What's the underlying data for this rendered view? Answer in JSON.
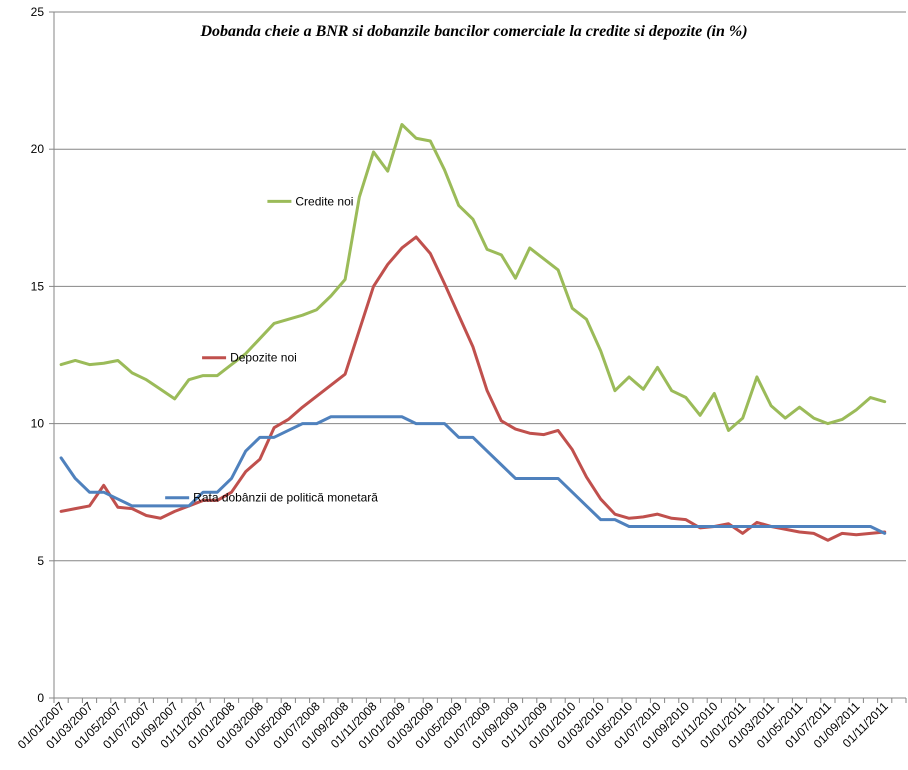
{
  "chart_data": {
    "type": "line",
    "title": "Dobanda cheie a BNR si dobanzile bancilor comerciale la credite si depozite (in %)",
    "xlabel": "",
    "ylabel": "",
    "ylim": [
      0,
      25
    ],
    "yticks": [
      0,
      5,
      10,
      15,
      20,
      25
    ],
    "grid": true,
    "x": [
      "01/01/2007",
      "01/02/2007",
      "01/03/2007",
      "01/04/2007",
      "01/05/2007",
      "01/06/2007",
      "01/07/2007",
      "01/08/2007",
      "01/09/2007",
      "01/10/2007",
      "01/11/2007",
      "01/12/2007",
      "01/01/2008",
      "01/02/2008",
      "01/03/2008",
      "01/04/2008",
      "01/05/2008",
      "01/06/2008",
      "01/07/2008",
      "01/08/2008",
      "01/09/2008",
      "01/10/2008",
      "01/11/2008",
      "01/12/2008",
      "01/01/2009",
      "01/02/2009",
      "01/03/2009",
      "01/04/2009",
      "01/05/2009",
      "01/06/2009",
      "01/07/2009",
      "01/08/2009",
      "01/09/2009",
      "01/10/2009",
      "01/11/2009",
      "01/12/2009",
      "01/01/2010",
      "01/02/2010",
      "01/03/2010",
      "01/04/2010",
      "01/05/2010",
      "01/06/2010",
      "01/07/2010",
      "01/08/2010",
      "01/09/2010",
      "01/10/2010",
      "01/11/2010",
      "01/12/2010",
      "01/01/2011",
      "01/02/2011",
      "01/03/2011",
      "01/04/2011",
      "01/05/2011",
      "01/06/2011",
      "01/07/2011",
      "01/08/2011",
      "01/09/2011",
      "01/10/2011",
      "01/11/2011",
      "01/12/2011"
    ],
    "xtick_labels": [
      "01/01/2007",
      "01/03/2007",
      "01/05/2007",
      "01/07/2007",
      "01/09/2007",
      "01/11/2007",
      "01/01/2008",
      "01/03/2008",
      "01/05/2008",
      "01/07/2008",
      "01/09/2008",
      "01/11/2008",
      "01/01/2009",
      "01/03/2009",
      "01/05/2009",
      "01/07/2009",
      "01/09/2009",
      "01/11/2009",
      "01/01/2010",
      "01/03/2010",
      "01/05/2010",
      "01/07/2010",
      "01/09/2010",
      "01/11/2010",
      "01/01/2011",
      "01/03/2011",
      "01/05/2011",
      "01/07/2011",
      "01/09/2011",
      "01/11/2011"
    ],
    "series": [
      {
        "name": "Credite noi",
        "color": "#9bbb59",
        "values": [
          12.15,
          12.3,
          12.15,
          12.2,
          12.3,
          11.85,
          11.6,
          11.25,
          10.9,
          11.6,
          11.75,
          11.75,
          12.15,
          12.55,
          13.1,
          13.65,
          13.8,
          13.95,
          14.15,
          14.65,
          15.25,
          18.25,
          19.9,
          19.2,
          20.9,
          20.4,
          20.3,
          19.25,
          17.95,
          17.45,
          16.35,
          16.15,
          15.3,
          16.4,
          16.0,
          15.6,
          14.2,
          13.8,
          12.65,
          11.2,
          11.7,
          11.25,
          12.05,
          11.2,
          10.95,
          10.3,
          11.1,
          9.75,
          10.2,
          11.7,
          10.65,
          10.2,
          10.6,
          10.2,
          10.0,
          10.15,
          10.5,
          10.95,
          10.8,
          null
        ]
      },
      {
        "name": "Depozite noi",
        "color": "#c0504d",
        "values": [
          6.8,
          6.9,
          7.0,
          7.75,
          6.95,
          6.9,
          6.65,
          6.55,
          6.8,
          7.0,
          7.2,
          7.2,
          7.5,
          8.25,
          8.7,
          9.85,
          10.15,
          10.6,
          11.0,
          11.4,
          11.8,
          13.4,
          15.0,
          15.8,
          16.4,
          16.8,
          16.2,
          15.1,
          13.95,
          12.8,
          11.2,
          10.1,
          9.8,
          9.65,
          9.6,
          9.75,
          9.05,
          8.05,
          7.25,
          6.7,
          6.55,
          6.6,
          6.7,
          6.55,
          6.5,
          6.2,
          6.25,
          6.35,
          6.0,
          6.4,
          6.25,
          6.15,
          6.05,
          6.0,
          5.75,
          6.0,
          5.95,
          6.0,
          6.05,
          null
        ]
      },
      {
        "name": "Rata dobânzii de politică monetară",
        "color": "#4f81bd",
        "values": [
          8.75,
          8.0,
          7.5,
          7.5,
          7.25,
          7.0,
          7.0,
          7.0,
          7.0,
          7.0,
          7.5,
          7.5,
          8.0,
          9.0,
          9.5,
          9.5,
          9.75,
          10.0,
          10.0,
          10.25,
          10.25,
          10.25,
          10.25,
          10.25,
          10.25,
          10.0,
          10.0,
          10.0,
          9.5,
          9.5,
          9.0,
          8.5,
          8.0,
          8.0,
          8.0,
          8.0,
          7.5,
          7.0,
          6.5,
          6.5,
          6.25,
          6.25,
          6.25,
          6.25,
          6.25,
          6.25,
          6.25,
          6.25,
          6.25,
          6.25,
          6.25,
          6.25,
          6.25,
          6.25,
          6.25,
          6.25,
          6.25,
          6.25,
          6.0,
          null
        ]
      }
    ]
  }
}
